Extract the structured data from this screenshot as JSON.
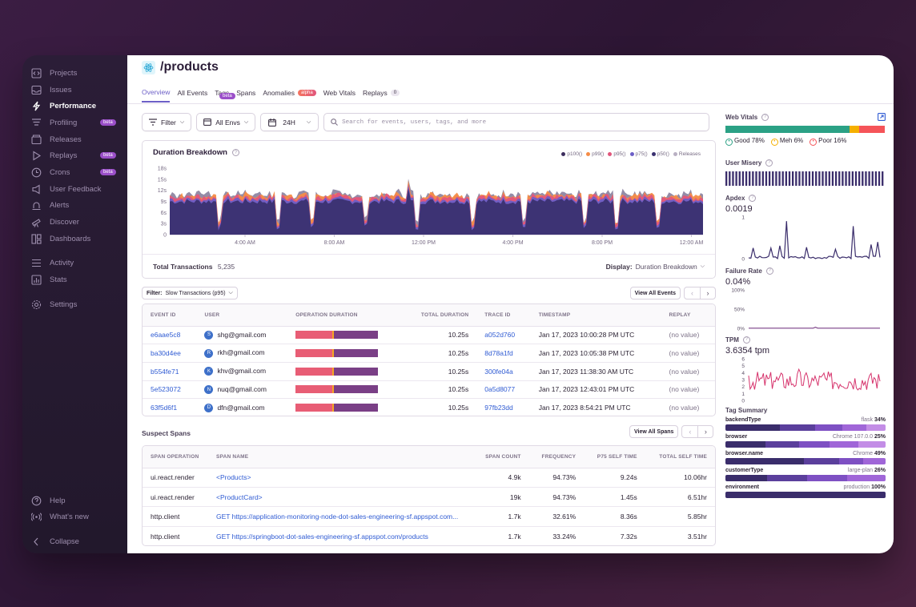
{
  "sidebar": {
    "items": [
      {
        "label": "Projects",
        "icon": "code-icon"
      },
      {
        "label": "Issues",
        "icon": "inbox-icon"
      },
      {
        "label": "Performance",
        "icon": "lightning-icon",
        "active": true
      },
      {
        "label": "Profiling",
        "icon": "funnel-icon",
        "badge": "beta"
      },
      {
        "label": "Releases",
        "icon": "package-icon"
      },
      {
        "label": "Replays",
        "icon": "play-icon",
        "badge": "beta"
      },
      {
        "label": "Crons",
        "icon": "clock-icon",
        "badge": "beta"
      },
      {
        "label": "User Feedback",
        "icon": "megaphone-icon"
      },
      {
        "label": "Alerts",
        "icon": "siren-icon"
      },
      {
        "label": "Discover",
        "icon": "telescope-icon"
      },
      {
        "label": "Dashboards",
        "icon": "dashboard-icon"
      }
    ],
    "secondary": [
      {
        "label": "Activity",
        "icon": "list-icon"
      },
      {
        "label": "Stats",
        "icon": "bar-chart-icon"
      }
    ],
    "settings": {
      "label": "Settings",
      "icon": "gear-icon"
    },
    "bottom": [
      {
        "label": "Help",
        "icon": "help-icon"
      },
      {
        "label": "What's new",
        "icon": "broadcast-icon"
      },
      {
        "label": "Collapse",
        "icon": "chevron-left-icon"
      }
    ]
  },
  "header": {
    "title": "/products"
  },
  "tabs": [
    {
      "label": "Overview",
      "active": true
    },
    {
      "label": "All Events"
    },
    {
      "label": "Tags"
    },
    {
      "label": "Spans"
    },
    {
      "label": "Anomalies",
      "pill": "alpha"
    },
    {
      "label": "Web Vitals"
    },
    {
      "label": "Replays",
      "count": "0",
      "pill": "beta"
    }
  ],
  "toolbar": {
    "filter_label": "Filter",
    "env_label": "All Envs",
    "period_label": "24H",
    "search_placeholder": "Search for events, users, tags, and more"
  },
  "duration_chart": {
    "title": "Duration Breakdown",
    "legend": [
      {
        "label": "p100()",
        "color": "#3d2e5e"
      },
      {
        "label": "p99()",
        "color": "#f58c46"
      },
      {
        "label": "p95()",
        "color": "#e1567c"
      },
      {
        "label": "p75()",
        "color": "#6c5fc7"
      },
      {
        "label": "p50()",
        "color": "#3a3070"
      },
      {
        "label": "Releases",
        "color": "#b9b0c3"
      }
    ],
    "footer_label": "Total Transactions",
    "footer_value": "5,235",
    "display_label": "Display:",
    "display_value": "Duration Breakdown"
  },
  "chart_data": {
    "type": "area",
    "title": "Duration Breakdown",
    "yticks": [
      "18s",
      "15s",
      "12s",
      "9s",
      "6s",
      "3s",
      "0"
    ],
    "xticks": [
      "4:00 AM",
      "8:00 AM",
      "12:00 PM",
      "4:00 PM",
      "8:00 PM",
      "12:00 AM"
    ],
    "ylim": [
      0,
      18
    ],
    "series": [
      {
        "name": "p100()",
        "approx_level_s": 11.5
      },
      {
        "name": "p99()",
        "approx_level_s": 11
      },
      {
        "name": "p95()",
        "approx_level_s": 10.5
      },
      {
        "name": "p75()",
        "approx_level_s": 9.5
      },
      {
        "name": "p50()",
        "approx_level_s": 8.5
      }
    ]
  },
  "events": {
    "filter_label": "Filter:",
    "filter_value": "Slow Transactions (p95)",
    "view_all": "View All Events",
    "columns": [
      "EVENT ID",
      "USER",
      "OPERATION DURATION",
      "TOTAL DURATION",
      "TRACE ID",
      "TIMESTAMP",
      "REPLAY"
    ],
    "rows": [
      {
        "id": "e6aae5c8",
        "initial": "S",
        "user": "shg@gmail.com",
        "duration": "10.25s",
        "trace": "a052d760",
        "timestamp": "Jan 17, 2023 10:00:28 PM UTC",
        "replay": "(no value)"
      },
      {
        "id": "ba30d4ee",
        "initial": "R",
        "user": "rkh@gmail.com",
        "duration": "10.25s",
        "trace": "8d78a1fd",
        "timestamp": "Jan 17, 2023 10:05:38 PM UTC",
        "replay": "(no value)"
      },
      {
        "id": "b554fe71",
        "initial": "K",
        "user": "khv@gmail.com",
        "duration": "10.25s",
        "trace": "300fe04a",
        "timestamp": "Jan 17, 2023 11:38:30 AM UTC",
        "replay": "(no value)"
      },
      {
        "id": "5e523072",
        "initial": "N",
        "user": "nuq@gmail.com",
        "duration": "10.25s",
        "trace": "0a5d8077",
        "timestamp": "Jan 17, 2023 12:43:01 PM UTC",
        "replay": "(no value)"
      },
      {
        "id": "63f5d6f1",
        "initial": "D",
        "user": "dfn@gmail.com",
        "duration": "10.25s",
        "trace": "97fb23dd",
        "timestamp": "Jan 17, 2023 8:54:21 PM UTC",
        "replay": "(no value)"
      }
    ]
  },
  "spans": {
    "title": "Suspect Spans",
    "view_all": "View All Spans",
    "columns": [
      "SPAN OPERATION",
      "SPAN NAME",
      "SPAN COUNT",
      "FREQUENCY",
      "P75 SELF TIME",
      "TOTAL SELF TIME"
    ],
    "rows": [
      {
        "op": "ui.react.render",
        "name": "<Products>",
        "count": "4.9k",
        "freq": "94.73%",
        "p75": "9.24s",
        "total": "10.06hr"
      },
      {
        "op": "ui.react.render",
        "name": "<ProductCard>",
        "count": "19k",
        "freq": "94.73%",
        "p75": "1.45s",
        "total": "6.51hr"
      },
      {
        "op": "http.client",
        "name": "GET https://application-monitoring-node-dot-sales-engineering-sf.appspot.com...",
        "count": "1.7k",
        "freq": "32.61%",
        "p75": "8.36s",
        "total": "5.85hr"
      },
      {
        "op": "http.client",
        "name": "GET https://springboot-dot-sales-engineering-sf.appspot.com/products",
        "count": "1.7k",
        "freq": "33.24%",
        "p75": "7.32s",
        "total": "3.51hr"
      }
    ]
  },
  "side": {
    "web_vitals": {
      "title": "Web Vitals",
      "good": "Good 78%",
      "meh": "Meh 6%",
      "poor": "Poor 16%",
      "good_frac": 0.78,
      "meh_frac": 0.06,
      "poor_frac": 0.16
    },
    "user_misery": {
      "title": "User Misery"
    },
    "apdex": {
      "title": "Apdex",
      "value": "0.0019",
      "yticks": [
        "1",
        "0"
      ]
    },
    "failure_rate": {
      "title": "Failure Rate",
      "value": "0.04%",
      "yticks": [
        "100%",
        "50%",
        "0%"
      ]
    },
    "tpm": {
      "title": "TPM",
      "value": "3.6354 tpm",
      "yticks": [
        "6",
        "5",
        "4",
        "3",
        "2",
        "1",
        "0"
      ]
    },
    "tag_summary": {
      "title": "Tag Summary",
      "tags": [
        {
          "key": "backendType",
          "top": "flask",
          "pct": "34%"
        },
        {
          "key": "browser",
          "top": "Chrome 107.0.0",
          "pct": "25%"
        },
        {
          "key": "browser.name",
          "top": "Chrome",
          "pct": "49%"
        },
        {
          "key": "customerType",
          "top": "large-plan",
          "pct": "26%"
        },
        {
          "key": "environment",
          "top": "production",
          "pct": "100%"
        }
      ]
    }
  }
}
